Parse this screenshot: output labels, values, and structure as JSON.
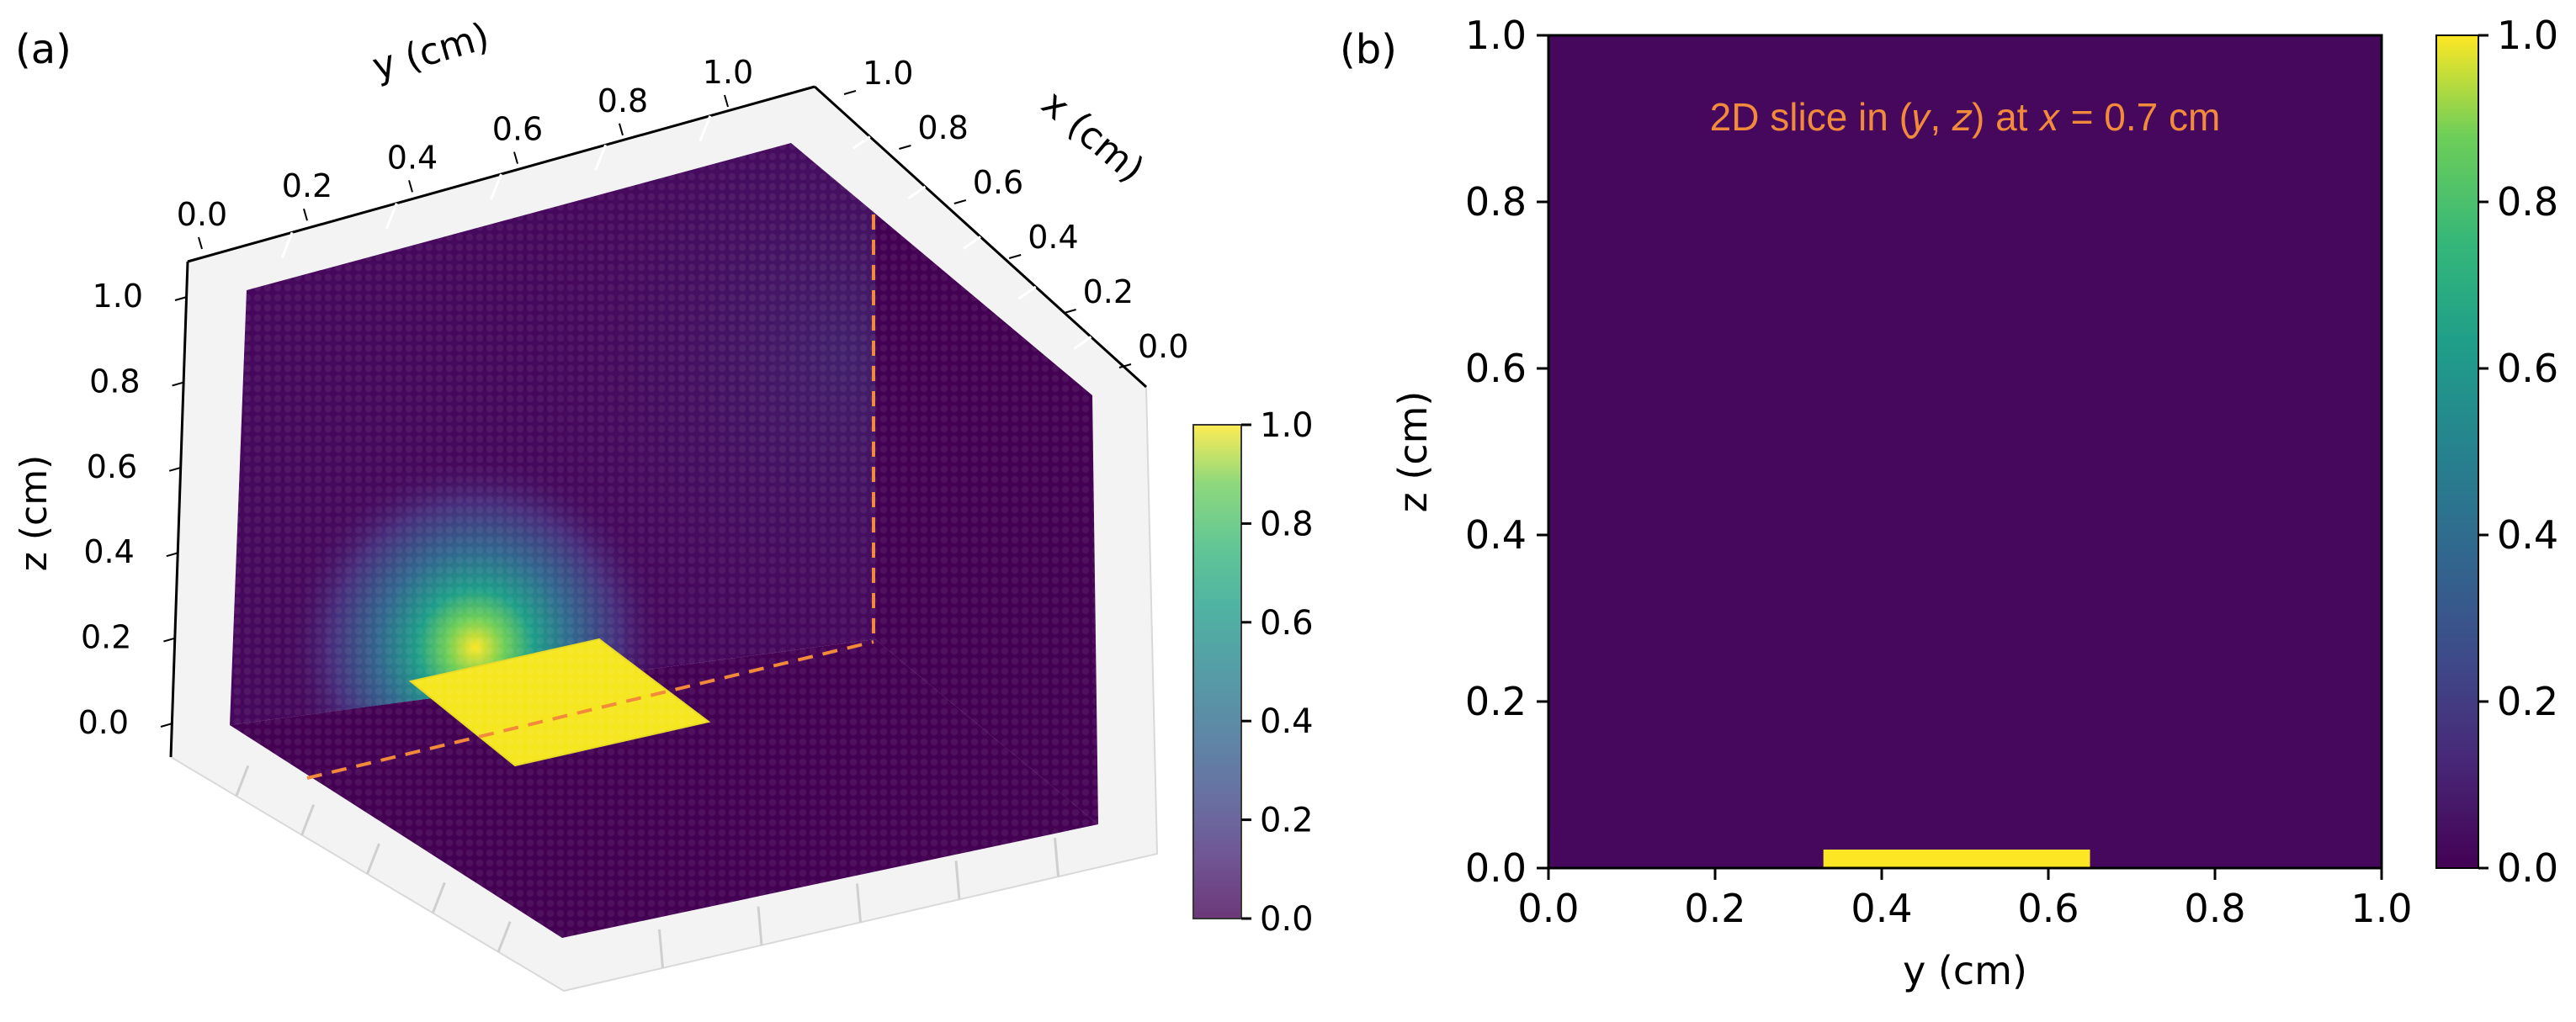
{
  "figure": {
    "panel_a_label": "(a)",
    "panel_b_label": "(b)"
  },
  "chart_data": [
    {
      "panel": "(a)",
      "type": "heatmap",
      "subtype": "3d-voxel-scatter",
      "colormap": "viridis",
      "xlabel": "x (cm)",
      "ylabel": "y (cm)",
      "zlabel": "z (cm)",
      "x_ticks": [
        "0.0",
        "0.2",
        "0.4",
        "0.6",
        "0.8",
        "1.0"
      ],
      "y_ticks": [
        "0.0",
        "0.2",
        "0.4",
        "0.6",
        "0.8",
        "1.0"
      ],
      "z_ticks": [
        "0.0",
        "0.2",
        "0.4",
        "0.6",
        "0.8",
        "1.0"
      ],
      "xlim": [
        0,
        1
      ],
      "ylim": [
        0,
        1
      ],
      "zlim": [
        0,
        1
      ],
      "source_patch": {
        "x": [
          0.3,
          0.7
        ],
        "y": [
          0.33,
          0.65
        ],
        "z": 0,
        "value": 1.0
      },
      "slice_plane_x": 0.7,
      "slice_line_color": "#f28a3c",
      "colorbar": {
        "min": 0.0,
        "max": 1.0,
        "ticks": [
          "0.0",
          "0.2",
          "0.4",
          "0.6",
          "0.8",
          "1.0"
        ]
      }
    },
    {
      "panel": "(b)",
      "type": "heatmap",
      "colormap": "viridis",
      "annotation": "2D slice in (𝑦, 𝑧)  at 𝑥 = 0.7 cm",
      "annotation_color": "#f28a3c",
      "xlabel": "y (cm)",
      "ylabel": "z (cm)",
      "x_ticks": [
        "0.0",
        "0.2",
        "0.4",
        "0.6",
        "0.8",
        "1.0"
      ],
      "y_ticks": [
        "0.0",
        "0.2",
        "0.4",
        "0.6",
        "0.8",
        "1.0"
      ],
      "xlim": [
        0,
        1
      ],
      "ylim": [
        0,
        1
      ],
      "source_patch": {
        "y": [
          0.33,
          0.65
        ],
        "z": 0,
        "value": 1.0
      },
      "colorbar": {
        "min": 0.0,
        "max": 1.0,
        "ticks": [
          "0.0",
          "0.2",
          "0.4",
          "0.6",
          "0.8",
          "1.0"
        ]
      }
    }
  ]
}
